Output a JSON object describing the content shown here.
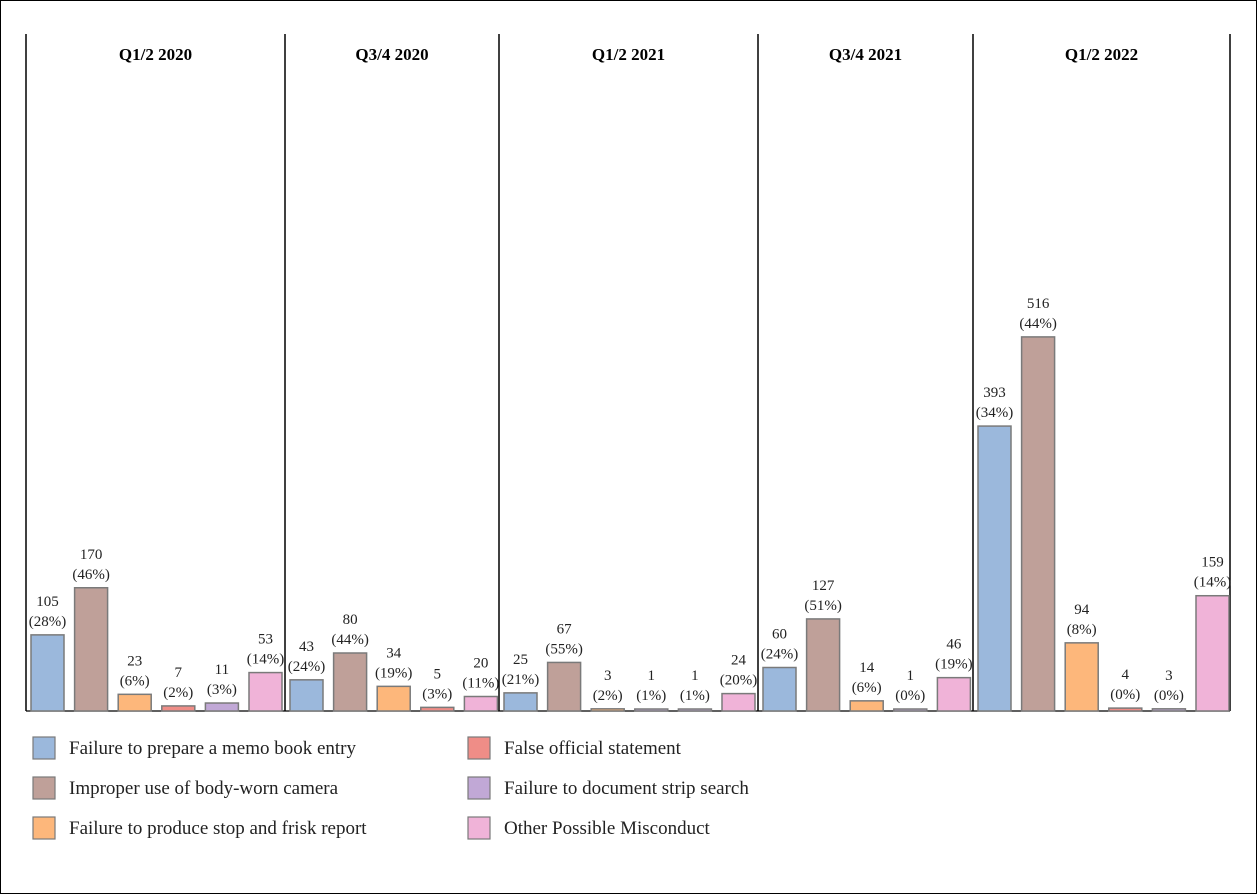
{
  "chart_data": {
    "type": "bar",
    "categories": [
      "Q1/2 2020",
      "Q3/4 2020",
      "Q1/2 2021",
      "Q3/4 2021",
      "Q1/2 2022"
    ],
    "ylim": [
      0,
      570
    ],
    "grid": false,
    "legend_position": "bottom",
    "series": [
      {
        "name": "Failure to prepare a memo book entry",
        "color": "#9bb8dc",
        "values": [
          105,
          43,
          25,
          60,
          393
        ],
        "labels": [
          "(28%)",
          "(24%)",
          "(21%)",
          "(24%)",
          "(34%)"
        ]
      },
      {
        "name": "Improper use of body-worn camera",
        "color": "#bfa099",
        "values": [
          170,
          80,
          67,
          127,
          516
        ],
        "labels": [
          "(46%)",
          "(44%)",
          "(55%)",
          "(51%)",
          "(44%)"
        ]
      },
      {
        "name": "Failure to produce stop and frisk report",
        "color": "#fdb77b",
        "values": [
          23,
          34,
          3,
          14,
          94
        ],
        "labels": [
          "(6%)",
          "(19%)",
          "(2%)",
          "(6%)",
          "(8%)"
        ]
      },
      {
        "name": "False official statement",
        "color": "#ef8d87",
        "values": [
          7,
          5,
          null,
          null,
          4
        ],
        "labels": [
          "(2%)",
          "(3%)",
          null,
          null,
          "(0%)"
        ]
      },
      {
        "name": "Failure to document strip search",
        "color": "#c1a8d6",
        "values": [
          11,
          null,
          1,
          1,
          3
        ],
        "labels": [
          "(3%)",
          null,
          "(1%)",
          "(0%)",
          "(0%)"
        ]
      },
      {
        "name": "Other Possible Misconduct",
        "color": "#f0b3d8",
        "values": [
          53,
          20,
          24,
          46,
          159
        ],
        "labels": [
          "(14%)",
          "(11%)",
          "(20%)",
          "(19%)",
          "(14%)"
        ]
      }
    ],
    "panels": [
      {
        "title": "Q1/2 2020",
        "bars": [
          {
            "series": 0,
            "value": 105,
            "pct": "(28%)"
          },
          {
            "series": 1,
            "value": 170,
            "pct": "(46%)"
          },
          {
            "series": 2,
            "value": 23,
            "pct": "(6%)"
          },
          {
            "series": 3,
            "value": 7,
            "pct": "(2%)"
          },
          {
            "series": 4,
            "value": 11,
            "pct": "(3%)"
          },
          {
            "series": 5,
            "value": 53,
            "pct": "(14%)"
          }
        ]
      },
      {
        "title": "Q3/4 2020",
        "bars": [
          {
            "series": 0,
            "value": 43,
            "pct": "(24%)"
          },
          {
            "series": 1,
            "value": 80,
            "pct": "(44%)"
          },
          {
            "series": 2,
            "value": 34,
            "pct": "(19%)"
          },
          {
            "series": 3,
            "value": 5,
            "pct": "(3%)"
          },
          {
            "series": 5,
            "value": 20,
            "pct": "(11%)"
          }
        ]
      },
      {
        "title": "Q1/2 2021",
        "bars": [
          {
            "series": 0,
            "value": 25,
            "pct": "(21%)"
          },
          {
            "series": 1,
            "value": 67,
            "pct": "(55%)"
          },
          {
            "series": 2,
            "value": 3,
            "pct": "(2%)"
          },
          {
            "series": 4,
            "value": 1,
            "pct": "(1%)"
          },
          {
            "series": 4,
            "value": 1,
            "pct": "(1%)"
          },
          {
            "series": 5,
            "value": 24,
            "pct": "(20%)"
          }
        ]
      },
      {
        "title": "Q3/4 2021",
        "bars": [
          {
            "series": 0,
            "value": 60,
            "pct": "(24%)"
          },
          {
            "series": 1,
            "value": 127,
            "pct": "(51%)"
          },
          {
            "series": 2,
            "value": 14,
            "pct": "(6%)"
          },
          {
            "series": 4,
            "value": 1,
            "pct": "(0%)"
          },
          {
            "series": 5,
            "value": 46,
            "pct": "(19%)"
          }
        ]
      },
      {
        "title": "Q1/2 2022",
        "bars": [
          {
            "series": 0,
            "value": 393,
            "pct": "(34%)"
          },
          {
            "series": 1,
            "value": 516,
            "pct": "(44%)"
          },
          {
            "series": 2,
            "value": 94,
            "pct": "(8%)"
          },
          {
            "series": 3,
            "value": 4,
            "pct": "(0%)"
          },
          {
            "series": 4,
            "value": 3,
            "pct": "(0%)"
          },
          {
            "series": 5,
            "value": 159,
            "pct": "(14%)"
          }
        ]
      }
    ]
  }
}
